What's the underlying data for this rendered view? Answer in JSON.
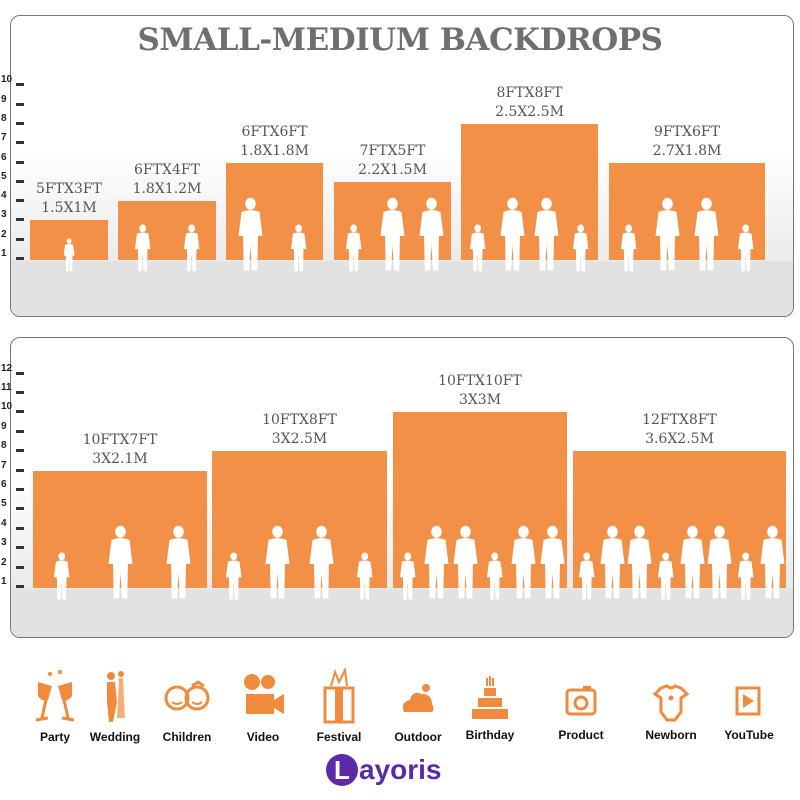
{
  "title": "SMALL-MEDIUM BACKDROPS",
  "colors": {
    "bar": "#f29048",
    "icon": "#f08a3c",
    "logo": "#5b2aa8",
    "title": "#6f6f6f"
  },
  "top_panel": {
    "scale_ticks": [
      "1",
      "2",
      "3",
      "4",
      "5",
      "6",
      "7",
      "8",
      "9",
      "10"
    ],
    "sizes": [
      {
        "ft": "5FTX3FT",
        "m": "1.5X1M",
        "width_ft": 5,
        "height_ft": 3,
        "people": 1
      },
      {
        "ft": "6FTX4FT",
        "m": "1.8X1.2M",
        "width_ft": 6,
        "height_ft": 4,
        "people": 2
      },
      {
        "ft": "6FTX6FT",
        "m": "1.8X1.8M",
        "width_ft": 6,
        "height_ft": 6,
        "people": 2
      },
      {
        "ft": "7FTX5FT",
        "m": "2.2X1.5M",
        "width_ft": 7,
        "height_ft": 5,
        "people": 3
      },
      {
        "ft": "8FTX8FT",
        "m": "2.5X2.5M",
        "width_ft": 8,
        "height_ft": 8,
        "people": 4
      },
      {
        "ft": "9FTX6FT",
        "m": "2.7X1.8M",
        "width_ft": 9,
        "height_ft": 6,
        "people": 4
      }
    ]
  },
  "bottom_panel": {
    "scale_ticks": [
      "1",
      "2",
      "3",
      "4",
      "5",
      "6",
      "7",
      "8",
      "9",
      "10",
      "11",
      "12"
    ],
    "watermark": "layoris",
    "sizes": [
      {
        "ft": "10FTX7FT",
        "m": "3X2.1M",
        "width_ft": 10,
        "height_ft": 7,
        "people": 3
      },
      {
        "ft": "10FTX8FT",
        "m": "3X2.5M",
        "width_ft": 10,
        "height_ft": 8,
        "people": 4
      },
      {
        "ft": "10FTX10FT",
        "m": "3X3M",
        "width_ft": 10,
        "height_ft": 10,
        "people": 6
      },
      {
        "ft": "12FTX8FT",
        "m": "3.6X2.5M",
        "width_ft": 12,
        "height_ft": 8,
        "people": 8
      }
    ]
  },
  "uses": [
    {
      "label": "Party",
      "icon": "champagne-glasses-icon"
    },
    {
      "label": "Wedding",
      "icon": "wedding-couple-icon"
    },
    {
      "label": "Children",
      "icon": "children-faces-icon"
    },
    {
      "label": "Video",
      "icon": "movie-camera-icon"
    },
    {
      "label": "Festival",
      "icon": "gift-box-icon"
    },
    {
      "label": "Outdoor",
      "icon": "cloud-icon"
    },
    {
      "label": "Birthday",
      "icon": "birthday-cake-icon"
    },
    {
      "label": "Product",
      "icon": "camera-icon"
    },
    {
      "label": "Newborn",
      "icon": "baby-onesie-icon"
    },
    {
      "label": "YouTube",
      "icon": "play-button-icon"
    }
  ],
  "brand": {
    "initial": "L",
    "rest": "ayoris"
  }
}
